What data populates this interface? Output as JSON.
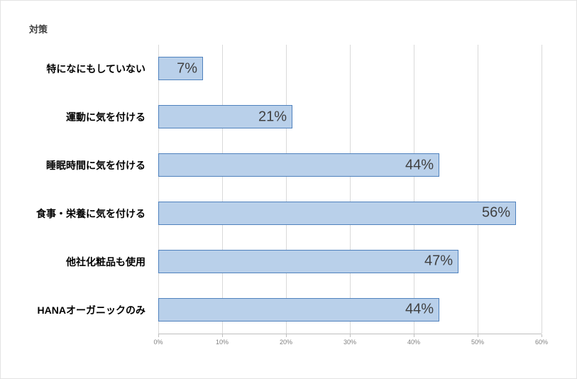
{
  "chart_data": {
    "type": "bar",
    "orientation": "horizontal",
    "title": "対策",
    "categories": [
      "特になにもしていない",
      "運動に気を付ける",
      "睡眠時間に気を付ける",
      "食事・栄養に気を付ける",
      "他社化粧品も使用",
      "HANAオーガニックのみ"
    ],
    "values": [
      7,
      21,
      44,
      56,
      47,
      44
    ],
    "value_labels": [
      "7%",
      "21%",
      "44%",
      "56%",
      "47%",
      "44%"
    ],
    "xlabel": "",
    "ylabel": "",
    "xlim": [
      0,
      60
    ],
    "x_ticks": [
      "0%",
      "10%",
      "20%",
      "30%",
      "40%",
      "50%",
      "60%"
    ],
    "grid": true,
    "legend": "none",
    "colors": {
      "bar_fill": "#B9D0EA",
      "bar_border": "#4F81BD",
      "gridline": "#D9D9D9",
      "axis_line": "#BFBFBF",
      "tick_text": "#808080",
      "value_text": "#404040",
      "category_text": "#000000",
      "background": "#FFFFFF"
    }
  }
}
